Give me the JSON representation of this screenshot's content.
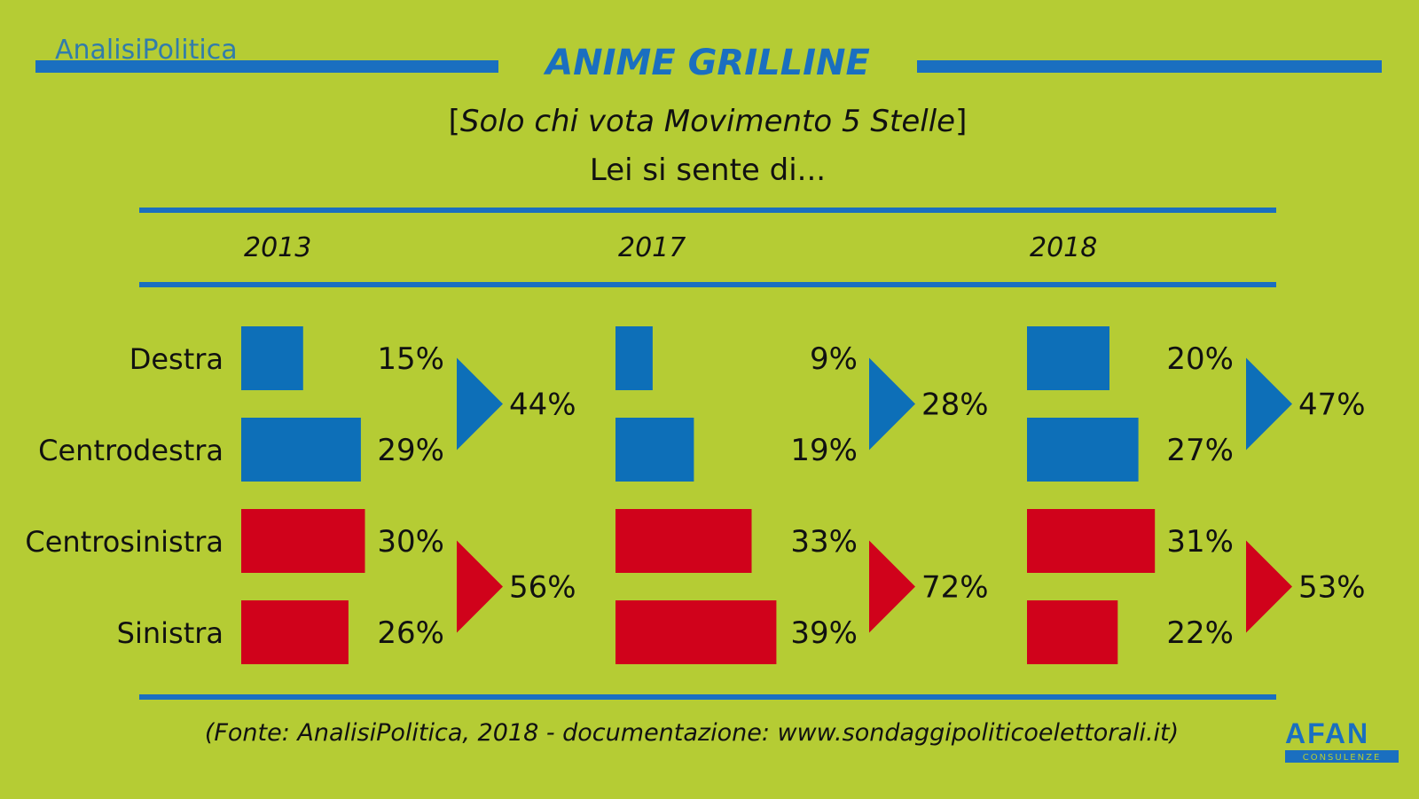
{
  "header": {
    "brand": "AnalisiPolitica",
    "title": "ANIME GRILLINE",
    "subtitle_prefix": "[",
    "subtitle_italic": "Solo chi vota Movimento 5 Stelle",
    "subtitle_suffix": "]",
    "question": "Lei si sente di..."
  },
  "footer": {
    "source": "(Fonte: AnalisiPolitica, 2018 - documentazione: www.sondaggipoliticoelettorali.it)",
    "logo_text": "AFAN",
    "logo_sub": "CONSULENZE"
  },
  "colors": {
    "background": "#b5cc34",
    "accent_blue": "#1a6fc0",
    "bar_right": "#0d6fb8",
    "bar_left": "#d0021b",
    "text": "#111111"
  },
  "chart_data": {
    "type": "bar",
    "orientation": "horizontal",
    "categories": [
      "Destra",
      "Centrodestra",
      "Centrosinistra",
      "Sinistra"
    ],
    "series": [
      {
        "name": "2013",
        "values": [
          15,
          29,
          30,
          26
        ],
        "labels": [
          "15%",
          "29%",
          "30%",
          "26%"
        ]
      },
      {
        "name": "2017",
        "values": [
          9,
          19,
          33,
          39
        ],
        "labels": [
          "9%",
          "19%",
          "33%",
          "39%"
        ]
      },
      {
        "name": "2018",
        "values": [
          20,
          27,
          31,
          22
        ],
        "labels": [
          "20%",
          "27%",
          "31%",
          "22%"
        ]
      }
    ],
    "totals": [
      {
        "right": 44,
        "left": 56,
        "right_label": "44%",
        "left_label": "56%"
      },
      {
        "right": 28,
        "left": 72,
        "right_label": "28%",
        "left_label": "72%"
      },
      {
        "right": 47,
        "left": 53,
        "right_label": "47%",
        "left_label": "53%"
      }
    ],
    "unit": "%",
    "xlim": [
      0,
      40
    ],
    "grid": false,
    "legend": "none"
  }
}
